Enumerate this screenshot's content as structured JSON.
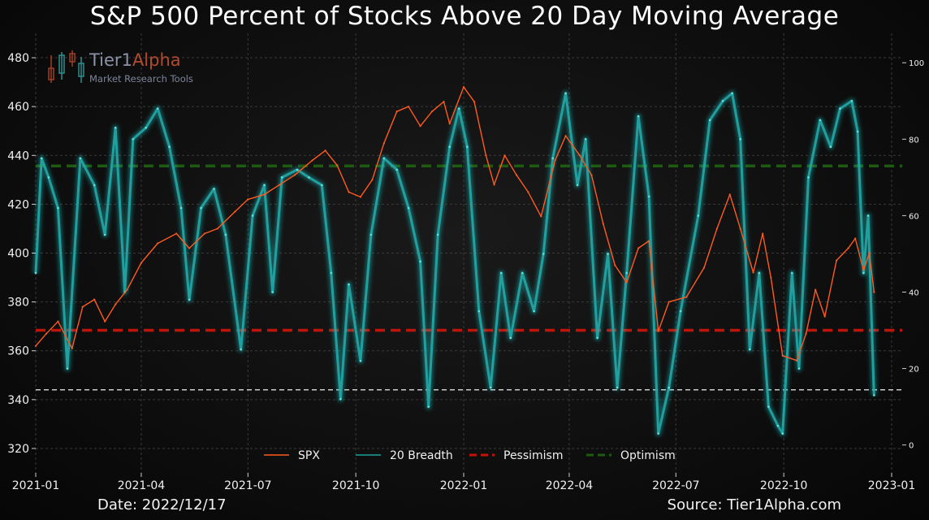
{
  "title": "S&P 500 Percent of Stocks Above 20 Day Moving Average",
  "footer": {
    "date": "Date: 2022/12/17",
    "source": "Source: Tier1Alpha.com"
  },
  "logo": {
    "name_part1": "Tier1",
    "name_part2": "Alpha",
    "tagline": "Market Research Tools"
  },
  "colors": {
    "spx": "#ff5a1f",
    "breadth": "#1ec8c8",
    "pessimism": "#c0140a",
    "optimism": "#1f5a12",
    "threshold": "#cccccc",
    "background": "#0b0b0b"
  },
  "chart_data": {
    "type": "line",
    "title": "S&P 500 Percent of Stocks Above 20 Day Moving Average",
    "x_ticks": [
      "2021-01",
      "2021-04",
      "2021-07",
      "2021-10",
      "2022-01",
      "2022-04",
      "2022-07",
      "2022-10",
      "2023-01"
    ],
    "xlim": [
      "2021-01-01",
      "2023-01-10"
    ],
    "y_left": {
      "ticks": [
        320,
        340,
        360,
        380,
        400,
        420,
        440,
        460,
        480
      ],
      "range": [
        310,
        490
      ]
    },
    "y_right": {
      "ticks": [
        0,
        20,
        40,
        60,
        80,
        100
      ],
      "range": [
        -7.3,
        107.7
      ]
    },
    "grid": true,
    "legend_position": "bottom-center",
    "series": [
      {
        "name": "SPX",
        "axis": "left",
        "color": "#ff5a1f",
        "points": [
          [
            "2021-01-01",
            362
          ],
          [
            "2021-01-10",
            367
          ],
          [
            "2021-01-20",
            372
          ],
          [
            "2021-02-01",
            361
          ],
          [
            "2021-02-10",
            378
          ],
          [
            "2021-02-20",
            381
          ],
          [
            "2021-03-01",
            372
          ],
          [
            "2021-03-10",
            379
          ],
          [
            "2021-03-20",
            385
          ],
          [
            "2021-04-01",
            396
          ],
          [
            "2021-04-15",
            404
          ],
          [
            "2021-05-01",
            408
          ],
          [
            "2021-05-12",
            402
          ],
          [
            "2021-05-25",
            408
          ],
          [
            "2021-06-05",
            410
          ],
          [
            "2021-06-20",
            417
          ],
          [
            "2021-07-01",
            422
          ],
          [
            "2021-07-15",
            424
          ],
          [
            "2021-07-28",
            428
          ],
          [
            "2021-08-10",
            432
          ],
          [
            "2021-08-25",
            438
          ],
          [
            "2021-09-05",
            442
          ],
          [
            "2021-09-15",
            436
          ],
          [
            "2021-09-25",
            425
          ],
          [
            "2021-10-05",
            423
          ],
          [
            "2021-10-15",
            430
          ],
          [
            "2021-10-25",
            445
          ],
          [
            "2021-11-05",
            458
          ],
          [
            "2021-11-15",
            460
          ],
          [
            "2021-11-25",
            452
          ],
          [
            "2021-12-05",
            458
          ],
          [
            "2021-12-15",
            462
          ],
          [
            "2021-12-20",
            453
          ],
          [
            "2022-01-01",
            468
          ],
          [
            "2022-01-10",
            462
          ],
          [
            "2022-01-20",
            440
          ],
          [
            "2022-01-27",
            428
          ],
          [
            "2022-02-05",
            440
          ],
          [
            "2022-02-15",
            432
          ],
          [
            "2022-02-25",
            425
          ],
          [
            "2022-03-08",
            415
          ],
          [
            "2022-03-20",
            438
          ],
          [
            "2022-03-29",
            448
          ],
          [
            "2022-04-10",
            440
          ],
          [
            "2022-04-20",
            432
          ],
          [
            "2022-04-30",
            412
          ],
          [
            "2022-05-10",
            395
          ],
          [
            "2022-05-20",
            388
          ],
          [
            "2022-05-30",
            402
          ],
          [
            "2022-06-08",
            405
          ],
          [
            "2022-06-16",
            368
          ],
          [
            "2022-06-25",
            380
          ],
          [
            "2022-07-10",
            382
          ],
          [
            "2022-07-25",
            394
          ],
          [
            "2022-08-05",
            410
          ],
          [
            "2022-08-16",
            424
          ],
          [
            "2022-08-25",
            410
          ],
          [
            "2022-09-05",
            392
          ],
          [
            "2022-09-13",
            408
          ],
          [
            "2022-09-20",
            390
          ],
          [
            "2022-09-30",
            358
          ],
          [
            "2022-10-12",
            356
          ],
          [
            "2022-10-20",
            367
          ],
          [
            "2022-10-28",
            385
          ],
          [
            "2022-11-05",
            374
          ],
          [
            "2022-11-15",
            397
          ],
          [
            "2022-11-25",
            402
          ],
          [
            "2022-12-01",
            406
          ],
          [
            "2022-12-08",
            393
          ],
          [
            "2022-12-13",
            400
          ],
          [
            "2022-12-17",
            384
          ]
        ]
      },
      {
        "name": "20 Breadth",
        "axis": "right",
        "color": "#1ec8c8",
        "points": [
          [
            "2021-01-01",
            45
          ],
          [
            "2021-01-06",
            75
          ],
          [
            "2021-01-12",
            70
          ],
          [
            "2021-01-20",
            62
          ],
          [
            "2021-01-28",
            20
          ],
          [
            "2021-02-08",
            75
          ],
          [
            "2021-02-20",
            68
          ],
          [
            "2021-03-01",
            55
          ],
          [
            "2021-03-10",
            83
          ],
          [
            "2021-03-18",
            40
          ],
          [
            "2021-03-25",
            80
          ],
          [
            "2021-04-05",
            83
          ],
          [
            "2021-04-15",
            88
          ],
          [
            "2021-04-25",
            78
          ],
          [
            "2021-05-05",
            62
          ],
          [
            "2021-05-12",
            38
          ],
          [
            "2021-05-22",
            62
          ],
          [
            "2021-06-02",
            67
          ],
          [
            "2021-06-12",
            55
          ],
          [
            "2021-06-25",
            25
          ],
          [
            "2021-07-05",
            60
          ],
          [
            "2021-07-15",
            68
          ],
          [
            "2021-07-22",
            40
          ],
          [
            "2021-07-30",
            70
          ],
          [
            "2021-08-12",
            72
          ],
          [
            "2021-08-22",
            70
          ],
          [
            "2021-09-02",
            68
          ],
          [
            "2021-09-10",
            45
          ],
          [
            "2021-09-18",
            12
          ],
          [
            "2021-09-25",
            42
          ],
          [
            "2021-10-05",
            22
          ],
          [
            "2021-10-14",
            55
          ],
          [
            "2021-10-25",
            75
          ],
          [
            "2021-11-05",
            72
          ],
          [
            "2021-11-15",
            62
          ],
          [
            "2021-11-25",
            48
          ],
          [
            "2021-12-02",
            10
          ],
          [
            "2021-12-10",
            55
          ],
          [
            "2021-12-20",
            78
          ],
          [
            "2021-12-28",
            88
          ],
          [
            "2022-01-04",
            78
          ],
          [
            "2022-01-14",
            35
          ],
          [
            "2022-01-24",
            15
          ],
          [
            "2022-02-02",
            45
          ],
          [
            "2022-02-10",
            28
          ],
          [
            "2022-02-20",
            45
          ],
          [
            "2022-03-02",
            35
          ],
          [
            "2022-03-10",
            50
          ],
          [
            "2022-03-18",
            75
          ],
          [
            "2022-03-29",
            92
          ],
          [
            "2022-04-08",
            68
          ],
          [
            "2022-04-15",
            80
          ],
          [
            "2022-04-25",
            28
          ],
          [
            "2022-05-04",
            50
          ],
          [
            "2022-05-12",
            15
          ],
          [
            "2022-05-20",
            45
          ],
          [
            "2022-05-30",
            86
          ],
          [
            "2022-06-08",
            65
          ],
          [
            "2022-06-16",
            3
          ],
          [
            "2022-06-25",
            15
          ],
          [
            "2022-07-05",
            35
          ],
          [
            "2022-07-20",
            60
          ],
          [
            "2022-07-30",
            85
          ],
          [
            "2022-08-10",
            90
          ],
          [
            "2022-08-18",
            92
          ],
          [
            "2022-08-25",
            80
          ],
          [
            "2022-09-02",
            25
          ],
          [
            "2022-09-10",
            45
          ],
          [
            "2022-09-18",
            10
          ],
          [
            "2022-09-26",
            5
          ],
          [
            "2022-09-30",
            3
          ],
          [
            "2022-10-08",
            45
          ],
          [
            "2022-10-14",
            20
          ],
          [
            "2022-10-22",
            70
          ],
          [
            "2022-11-01",
            85
          ],
          [
            "2022-11-10",
            78
          ],
          [
            "2022-11-18",
            88
          ],
          [
            "2022-11-28",
            90
          ],
          [
            "2022-12-03",
            82
          ],
          [
            "2022-12-08",
            45
          ],
          [
            "2022-12-12",
            60
          ],
          [
            "2022-12-17",
            13
          ]
        ]
      }
    ],
    "horizontal_lines": [
      {
        "name": "Pessimism",
        "axis": "right",
        "value": 30,
        "style": "dashed",
        "color": "#c0140a"
      },
      {
        "name": "Optimism",
        "axis": "right",
        "value": 73,
        "style": "dashed",
        "color": "#1f5a12"
      },
      {
        "name": "",
        "axis": "left",
        "value": 344,
        "style": "dashed",
        "color": "#cccccc"
      }
    ]
  }
}
